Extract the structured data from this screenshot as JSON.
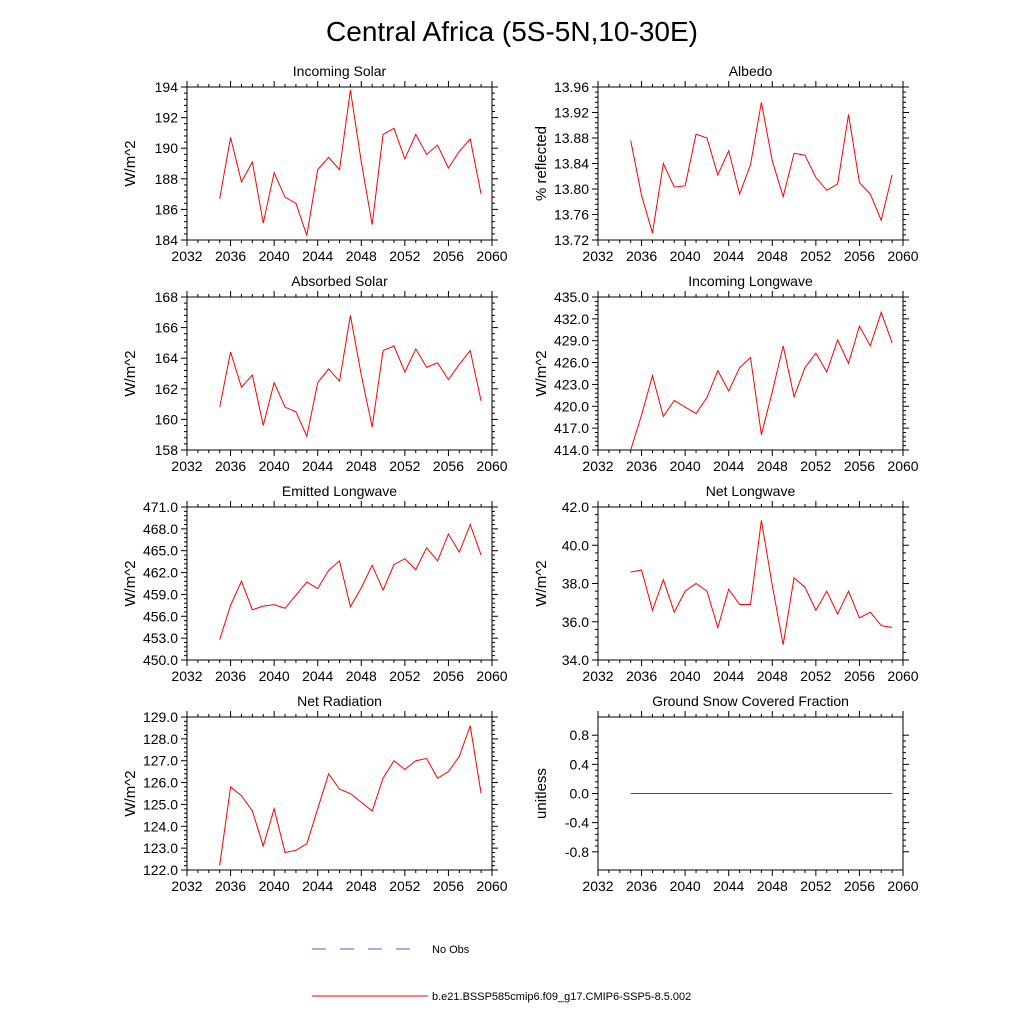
{
  "title": "Central Africa (5S-5N,10-30E)",
  "colors": {
    "series": "#ff0000",
    "obs": "#4466cc",
    "axis": "#000000"
  },
  "legend": {
    "obs_label": "No Obs",
    "model_label": "b.e21.BSSP585cmip6.f09_g17.CMIP6-SSP5-8.5.002"
  },
  "chart_data": [
    {
      "type": "line",
      "title": "Incoming Solar",
      "xlabel": "",
      "ylabel": "W/m^2",
      "xlim": [
        2032,
        2060
      ],
      "ylim": [
        184,
        194
      ],
      "xticks": [
        2032,
        2036,
        2040,
        2044,
        2048,
        2052,
        2056,
        2060
      ],
      "xticklabels": [
        "2032",
        "2036",
        "2040",
        "2044",
        "2048",
        "2052",
        "2056",
        "2060"
      ],
      "yticks": [
        184,
        186,
        188,
        190,
        192,
        194
      ],
      "yticklabels": [
        "184",
        "186",
        "188",
        "190",
        "192",
        "194"
      ],
      "yaxis_side": "left",
      "x": [
        2035,
        2036,
        2037,
        2038,
        2039,
        2040,
        2041,
        2042,
        2043,
        2044,
        2045,
        2046,
        2047,
        2048,
        2049,
        2050,
        2051,
        2052,
        2053,
        2054,
        2055,
        2056,
        2057,
        2058,
        2059
      ],
      "series": [
        {
          "values": [
            186.7,
            190.7,
            187.8,
            189.1,
            185.1,
            188.4,
            186.8,
            186.4,
            184.3,
            188.6,
            189.4,
            188.6,
            193.8,
            189.1,
            185.0,
            190.9,
            191.3,
            189.3,
            190.9,
            189.6,
            190.2,
            188.7,
            189.8,
            190.6,
            187.0
          ]
        }
      ]
    },
    {
      "type": "line",
      "title": "Albedo",
      "xlabel": "",
      "ylabel": "% reflected",
      "xlim": [
        2032,
        2060
      ],
      "ylim": [
        13.72,
        13.96
      ],
      "xticks": [
        2032,
        2036,
        2040,
        2044,
        2048,
        2052,
        2056,
        2060
      ],
      "xticklabels": [
        "2032",
        "2036",
        "2040",
        "2044",
        "2048",
        "2052",
        "2056",
        "2060"
      ],
      "yticks": [
        13.72,
        13.76,
        13.8,
        13.84,
        13.88,
        13.92,
        13.96
      ],
      "yticklabels": [
        "13.72",
        "13.76",
        "13.80",
        "13.84",
        "13.88",
        "13.92",
        "13.96"
      ],
      "yaxis_side": "left",
      "x": [
        2035,
        2036,
        2037,
        2038,
        2039,
        2040,
        2041,
        2042,
        2043,
        2044,
        2045,
        2046,
        2047,
        2048,
        2049,
        2050,
        2051,
        2052,
        2053,
        2054,
        2055,
        2056,
        2057,
        2058,
        2059
      ],
      "series": [
        {
          "values": [
            13.876,
            13.79,
            13.731,
            13.84,
            13.803,
            13.805,
            13.886,
            13.88,
            13.822,
            13.86,
            13.792,
            13.838,
            13.936,
            13.844,
            13.788,
            13.856,
            13.853,
            13.818,
            13.798,
            13.808,
            13.917,
            13.81,
            13.792,
            13.751,
            13.822
          ]
        }
      ]
    },
    {
      "type": "line",
      "title": "Absorbed Solar",
      "xlabel": "",
      "ylabel": "W/m^2",
      "xlim": [
        2032,
        2060
      ],
      "ylim": [
        158,
        168
      ],
      "xticks": [
        2032,
        2036,
        2040,
        2044,
        2048,
        2052,
        2056,
        2060
      ],
      "xticklabels": [
        "2032",
        "2036",
        "2040",
        "2044",
        "2048",
        "2052",
        "2056",
        "2060"
      ],
      "yticks": [
        158,
        160,
        162,
        164,
        166,
        168
      ],
      "yticklabels": [
        "158",
        "160",
        "162",
        "164",
        "166",
        "168"
      ],
      "yaxis_side": "left",
      "x": [
        2035,
        2036,
        2037,
        2038,
        2039,
        2040,
        2041,
        2042,
        2043,
        2044,
        2045,
        2046,
        2047,
        2048,
        2049,
        2050,
        2051,
        2052,
        2053,
        2054,
        2055,
        2056,
        2057,
        2058,
        2059
      ],
      "series": [
        {
          "values": [
            160.8,
            164.4,
            162.1,
            162.9,
            159.6,
            162.4,
            160.8,
            160.5,
            158.9,
            162.4,
            163.3,
            162.5,
            166.8,
            162.9,
            159.5,
            164.5,
            164.8,
            163.1,
            164.6,
            163.4,
            163.7,
            162.6,
            163.6,
            164.5,
            161.2
          ]
        }
      ]
    },
    {
      "type": "line",
      "title": "Incoming Longwave",
      "xlabel": "",
      "ylabel": "W/m^2",
      "xlim": [
        2032,
        2060
      ],
      "ylim": [
        414,
        435
      ],
      "xticks": [
        2032,
        2036,
        2040,
        2044,
        2048,
        2052,
        2056,
        2060
      ],
      "xticklabels": [
        "2032",
        "2036",
        "2040",
        "2044",
        "2048",
        "2052",
        "2056",
        "2060"
      ],
      "yticks": [
        414,
        417,
        420,
        423,
        426,
        429,
        432,
        435
      ],
      "yticklabels": [
        "414.0",
        "417.0",
        "420.0",
        "423.0",
        "426.0",
        "429.0",
        "432.0",
        "435.0"
      ],
      "yaxis_side": "left",
      "x": [
        2035,
        2036,
        2037,
        2038,
        2039,
        2040,
        2041,
        2042,
        2043,
        2044,
        2045,
        2046,
        2047,
        2048,
        2049,
        2050,
        2051,
        2052,
        2053,
        2054,
        2055,
        2056,
        2057,
        2058,
        2059
      ],
      "series": [
        {
          "values": [
            414.0,
            418.8,
            424.2,
            418.6,
            420.8,
            419.9,
            419.0,
            421.2,
            424.9,
            422.1,
            425.3,
            426.7,
            416.1,
            422.0,
            428.3,
            421.3,
            425.3,
            427.3,
            424.7,
            429.1,
            425.9,
            431.0,
            428.3,
            432.9,
            428.7
          ]
        }
      ]
    },
    {
      "type": "line",
      "title": "Emitted Longwave",
      "xlabel": "",
      "ylabel": "W/m^2",
      "xlim": [
        2032,
        2060
      ],
      "ylim": [
        450,
        471
      ],
      "xticks": [
        2032,
        2036,
        2040,
        2044,
        2048,
        2052,
        2056,
        2060
      ],
      "xticklabels": [
        "2032",
        "2036",
        "2040",
        "2044",
        "2048",
        "2052",
        "2056",
        "2060"
      ],
      "yticks": [
        450,
        453,
        456,
        459,
        462,
        465,
        468,
        471
      ],
      "yticklabels": [
        "450.0",
        "453.0",
        "456.0",
        "459.0",
        "462.0",
        "465.0",
        "468.0",
        "471.0"
      ],
      "yaxis_side": "left",
      "x": [
        2035,
        2036,
        2037,
        2038,
        2039,
        2040,
        2041,
        2042,
        2043,
        2044,
        2045,
        2046,
        2047,
        2048,
        2049,
        2050,
        2051,
        2052,
        2053,
        2054,
        2055,
        2056,
        2057,
        2058,
        2059
      ],
      "series": [
        {
          "values": [
            452.8,
            457.5,
            460.8,
            456.9,
            457.4,
            457.6,
            457.1,
            458.9,
            460.7,
            459.8,
            462.3,
            463.6,
            457.3,
            459.9,
            463.0,
            459.6,
            463.1,
            463.9,
            462.4,
            465.4,
            463.6,
            467.3,
            464.8,
            468.6,
            464.4
          ]
        }
      ]
    },
    {
      "type": "line",
      "title": "Net Longwave",
      "xlabel": "",
      "ylabel": "W/m^2",
      "xlim": [
        2032,
        2060
      ],
      "ylim": [
        34,
        42
      ],
      "xticks": [
        2032,
        2036,
        2040,
        2044,
        2048,
        2052,
        2056,
        2060
      ],
      "xticklabels": [
        "2032",
        "2036",
        "2040",
        "2044",
        "2048",
        "2052",
        "2056",
        "2060"
      ],
      "yticks": [
        34,
        36,
        38,
        40,
        42
      ],
      "yticklabels": [
        "34.0",
        "36.0",
        "38.0",
        "40.0",
        "42.0"
      ],
      "yaxis_side": "left",
      "x": [
        2035,
        2036,
        2037,
        2038,
        2039,
        2040,
        2041,
        2042,
        2043,
        2044,
        2045,
        2046,
        2047,
        2048,
        2049,
        2050,
        2051,
        2052,
        2053,
        2054,
        2055,
        2056,
        2057,
        2058,
        2059
      ],
      "series": [
        {
          "values": [
            38.6,
            38.7,
            36.6,
            38.2,
            36.5,
            37.6,
            38.0,
            37.6,
            35.7,
            37.7,
            36.9,
            36.9,
            41.3,
            37.9,
            34.8,
            38.3,
            37.8,
            36.6,
            37.6,
            36.4,
            37.6,
            36.2,
            36.5,
            35.8,
            35.7
          ]
        }
      ]
    },
    {
      "type": "line",
      "title": "Net Radiation",
      "xlabel": "",
      "ylabel": "W/m^2",
      "xlim": [
        2032,
        2060
      ],
      "ylim": [
        122,
        129
      ],
      "xticks": [
        2032,
        2036,
        2040,
        2044,
        2048,
        2052,
        2056,
        2060
      ],
      "xticklabels": [
        "2032",
        "2036",
        "2040",
        "2044",
        "2048",
        "2052",
        "2056",
        "2060"
      ],
      "yticks": [
        122,
        123,
        124,
        125,
        126,
        127,
        128,
        129
      ],
      "yticklabels": [
        "122.0",
        "123.0",
        "124.0",
        "125.0",
        "126.0",
        "127.0",
        "128.0",
        "129.0"
      ],
      "yaxis_side": "left",
      "x": [
        2035,
        2036,
        2037,
        2038,
        2039,
        2040,
        2041,
        2042,
        2043,
        2044,
        2045,
        2046,
        2047,
        2048,
        2049,
        2050,
        2051,
        2052,
        2053,
        2054,
        2055,
        2056,
        2057,
        2058,
        2059
      ],
      "series": [
        {
          "values": [
            122.2,
            125.8,
            125.4,
            124.7,
            123.1,
            124.8,
            122.8,
            122.9,
            123.2,
            124.8,
            126.4,
            125.7,
            125.5,
            125.1,
            124.7,
            126.2,
            127.0,
            126.6,
            127.0,
            127.1,
            126.2,
            126.5,
            127.2,
            128.6,
            125.5
          ]
        }
      ]
    },
    {
      "type": "line",
      "title": "Ground Snow Covered Fraction",
      "xlabel": "",
      "ylabel": "unitless",
      "xlim": [
        2032,
        2060
      ],
      "ylim": [
        -1.05,
        1.05
      ],
      "xticks": [
        2032,
        2036,
        2040,
        2044,
        2048,
        2052,
        2056,
        2060
      ],
      "xticklabels": [
        "2032",
        "2036",
        "2040",
        "2044",
        "2048",
        "2052",
        "2056",
        "2060"
      ],
      "yticks": [
        -0.8,
        -0.4,
        0.0,
        0.4,
        0.8
      ],
      "yticklabels": [
        "-0.8",
        "-0.4",
        "0.0",
        "0.4",
        "0.8"
      ],
      "yaxis_side": "left",
      "x": [
        2035,
        2036,
        2037,
        2038,
        2039,
        2040,
        2041,
        2042,
        2043,
        2044,
        2045,
        2046,
        2047,
        2048,
        2049,
        2050,
        2051,
        2052,
        2053,
        2054,
        2055,
        2056,
        2057,
        2058,
        2059
      ],
      "series": [
        {
          "values": [
            0,
            0,
            0,
            0,
            0,
            0,
            0,
            0,
            0,
            0,
            0,
            0,
            0,
            0,
            0,
            0,
            0,
            0,
            0,
            0,
            0,
            0,
            0,
            0,
            0
          ]
        }
      ]
    }
  ]
}
